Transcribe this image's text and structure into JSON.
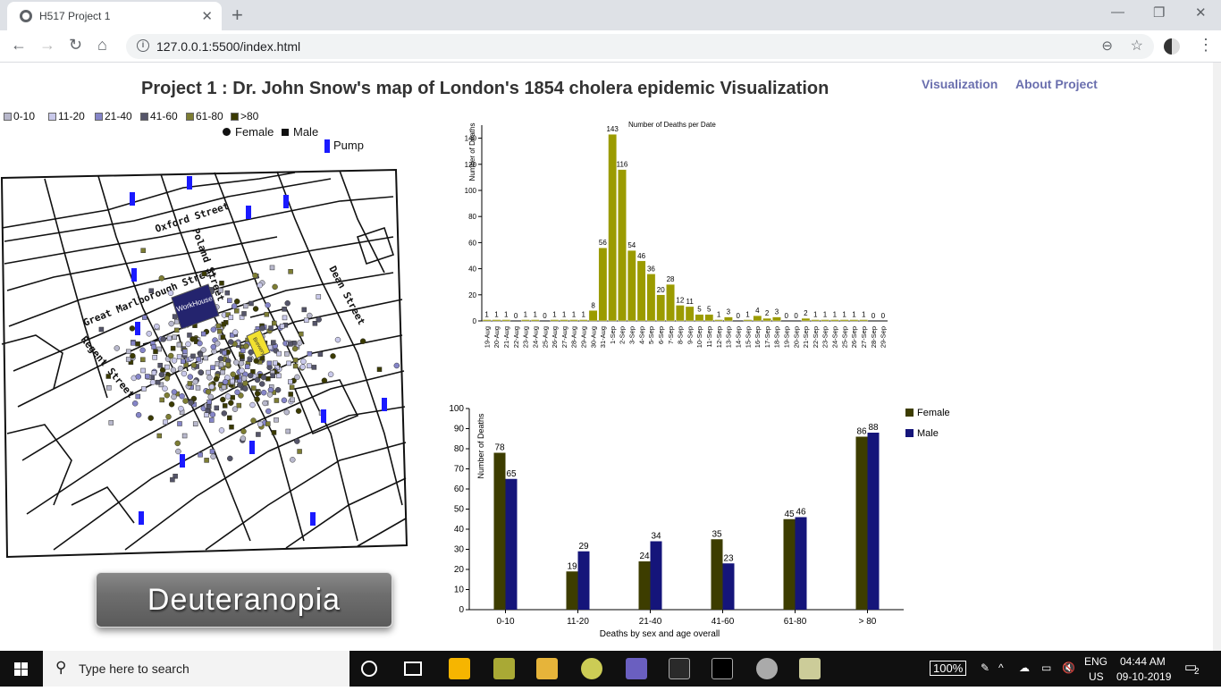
{
  "browser": {
    "tab_title": "H517 Project 1",
    "tab_close": "✕",
    "new_tab": "+",
    "url": "127.0.0.1:5500/index.html",
    "info": "i",
    "minimize": "—",
    "maximize": "❐",
    "close": "✕"
  },
  "page": {
    "title": "Project 1 : Dr. John Snow's map of London's 1854 cholera epidemic Visualization",
    "nav": [
      "Visualization",
      "About Project"
    ],
    "vision_mode": "Deuteranopia"
  },
  "age_legend": [
    {
      "label": "0-10",
      "color": "#b8b8cc"
    },
    {
      "label": "11-20",
      "color": "#c9c9ea"
    },
    {
      "label": "21-40",
      "color": "#8585c8"
    },
    {
      "label": "41-60",
      "color": "#55556a"
    },
    {
      "label": "61-80",
      "color": "#7d7d33"
    },
    {
      "label": ">80",
      "color": "#3a3a00"
    }
  ],
  "sex_legend": {
    "female": "Female",
    "male": "Male",
    "pump": "Pump"
  },
  "map": {
    "streets": [
      "Oxford Street",
      "Great Marlborough Street",
      "Regent Street",
      "Dean Street",
      "Poland Street"
    ],
    "workhouse": "WorkHouse",
    "brewery": "Brewery",
    "pump_color": "#1a1aff"
  },
  "chart_data": [
    {
      "type": "bar",
      "title": "Number of Deaths per Date",
      "ylabel": "Number of Deaths",
      "xlabel": "",
      "ylim": [
        0,
        150
      ],
      "yticks": [
        0,
        20,
        40,
        60,
        80,
        100,
        120,
        140
      ],
      "color": "#9b9b00",
      "categories": [
        "19-Aug",
        "20-Aug",
        "21-Aug",
        "22-Aug",
        "23-Aug",
        "24-Aug",
        "25-Aug",
        "26-Aug",
        "27-Aug",
        "28-Aug",
        "29-Aug",
        "30-Aug",
        "31-Aug",
        "1-Sep",
        "2-Sep",
        "3-Sep",
        "4-Sep",
        "5-Sep",
        "6-Sep",
        "7-Sep",
        "8-Sep",
        "9-Sep",
        "10-Sep",
        "11-Sep",
        "12-Sep",
        "13-Sep",
        "14-Sep",
        "15-Sep",
        "16-Sep",
        "17-Sep",
        "18-Sep",
        "19-Sep",
        "20-Sep",
        "21-Sep",
        "22-Sep",
        "23-Sep",
        "24-Sep",
        "25-Sep",
        "26-Sep",
        "27-Sep",
        "28-Sep",
        "29-Sep"
      ],
      "values": [
        1,
        1,
        1,
        0,
        1,
        1,
        0,
        1,
        1,
        1,
        1,
        8,
        56,
        143,
        116,
        54,
        46,
        36,
        20,
        28,
        12,
        11,
        5,
        5,
        1,
        3,
        0,
        1,
        4,
        2,
        3,
        0,
        0,
        2,
        1,
        1,
        1,
        1,
        1,
        1,
        0,
        0
      ]
    },
    {
      "type": "bar",
      "title": "",
      "ylabel": "Number of Deaths",
      "xlabel": "Deaths by sex and age overall",
      "ylim": [
        0,
        100
      ],
      "yticks": [
        0,
        10,
        20,
        30,
        40,
        50,
        60,
        70,
        80,
        90,
        100
      ],
      "categories": [
        "0-10",
        "11-20",
        "21-40",
        "41-60",
        "61-80",
        "> 80"
      ],
      "series": [
        {
          "name": "Female",
          "color": "#3d3d00",
          "values": [
            78,
            19,
            24,
            35,
            45,
            86
          ]
        },
        {
          "name": "Male",
          "color": "#15157a",
          "values": [
            65,
            29,
            34,
            23,
            46,
            88
          ]
        }
      ]
    }
  ],
  "taskbar": {
    "search_placeholder": "Type here to search",
    "zoom": "100%",
    "lang": "ENG",
    "region": "US",
    "time": "04:44 AM",
    "date": "09-10-2019",
    "notifications": "2"
  }
}
